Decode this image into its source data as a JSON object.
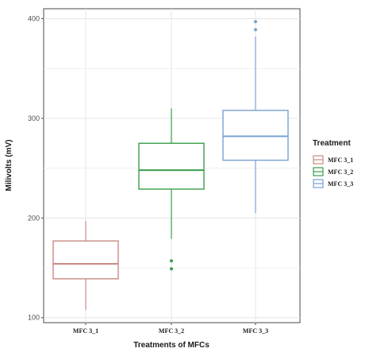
{
  "chart_data": {
    "type": "box",
    "xlabel": "Treatments of MFCs",
    "ylabel": "Milivolts (mV)",
    "y_ticks": [
      100,
      200,
      300,
      400
    ],
    "ylim": [
      95,
      410
    ],
    "grid": true,
    "legend": {
      "title": "Treatment",
      "position": "right"
    },
    "series": [
      {
        "name": "MFC 3_1",
        "color": "#c98a84",
        "min": 108,
        "q1": 139,
        "median": 154,
        "q3": 177,
        "max": 197,
        "outliers": []
      },
      {
        "name": "MFC 3_2",
        "color": "#3a9d4a",
        "min": 179,
        "q1": 229,
        "median": 248,
        "q3": 275,
        "max": 310,
        "outliers": [
          157,
          149
        ]
      },
      {
        "name": "MFC 3_3",
        "color": "#7aa0d4",
        "min": 205,
        "q1": 258,
        "median": 282,
        "q3": 308,
        "max": 382,
        "outliers": [
          397,
          389
        ]
      }
    ]
  }
}
